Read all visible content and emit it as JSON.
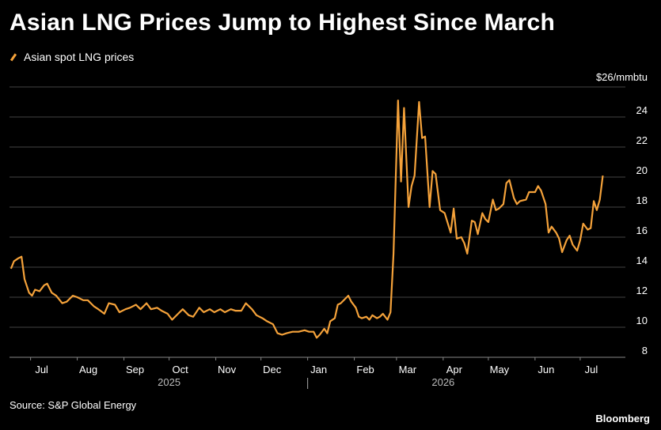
{
  "title": "Asian LNG Prices Jump to Highest Since March",
  "source": "Source: S&P Global Energy",
  "brand": "Bloomberg",
  "chart_data": {
    "type": "line",
    "title": "Asian LNG Prices Jump to Highest Since March",
    "unit_label": "$26/mmbtu",
    "ylim": [
      8,
      26
    ],
    "y_ticks": [
      8,
      10,
      12,
      14,
      16,
      18,
      20,
      22,
      24
    ],
    "y_tick_labels": [
      "8",
      "10",
      "12",
      "14",
      "16",
      "18",
      "20",
      "22",
      "24"
    ],
    "x_ticks": [
      "Jul",
      "Aug",
      "Sep",
      "Oct",
      "Nov",
      "Dec",
      "Jan",
      "Feb",
      "Mar",
      "Apr",
      "May",
      "Jun",
      "Jul"
    ],
    "x_tick_dates": [
      "2025-07-01",
      "2025-08-01",
      "2025-09-01",
      "2025-10-01",
      "2025-11-01",
      "2025-12-01",
      "2026-01-01",
      "2026-02-01",
      "2026-03-01",
      "2026-04-01",
      "2026-05-01",
      "2026-06-01",
      "2026-07-01"
    ],
    "year_labels": [
      {
        "year": "2025",
        "date": "2025-10-01"
      },
      {
        "year": "2026",
        "date": "2026-04-01"
      }
    ],
    "year_divider_date": "2026-01-01",
    "xlim": [
      "2025-06-17",
      "2026-07-31"
    ],
    "grid": true,
    "legend_position": "top-left",
    "series": [
      {
        "name": "Asian spot LNG prices",
        "color": "#f5a23a",
        "points": [
          [
            "2025-06-18",
            13.9
          ],
          [
            "2025-06-20",
            14.4
          ],
          [
            "2025-06-23",
            14.6
          ],
          [
            "2025-06-25",
            14.7
          ],
          [
            "2025-06-27",
            13.2
          ],
          [
            "2025-06-30",
            12.3
          ],
          [
            "2025-07-02",
            12.1
          ],
          [
            "2025-07-04",
            12.5
          ],
          [
            "2025-07-07",
            12.4
          ],
          [
            "2025-07-10",
            12.8
          ],
          [
            "2025-07-12",
            12.9
          ],
          [
            "2025-07-15",
            12.3
          ],
          [
            "2025-07-18",
            12.1
          ],
          [
            "2025-07-22",
            11.6
          ],
          [
            "2025-07-25",
            11.7
          ],
          [
            "2025-07-29",
            12.1
          ],
          [
            "2025-08-01",
            12.0
          ],
          [
            "2025-08-05",
            11.8
          ],
          [
            "2025-08-08",
            11.8
          ],
          [
            "2025-08-12",
            11.4
          ],
          [
            "2025-08-15",
            11.2
          ],
          [
            "2025-08-19",
            10.9
          ],
          [
            "2025-08-22",
            11.6
          ],
          [
            "2025-08-26",
            11.5
          ],
          [
            "2025-08-29",
            11.0
          ],
          [
            "2025-09-02",
            11.2
          ],
          [
            "2025-09-05",
            11.3
          ],
          [
            "2025-09-09",
            11.5
          ],
          [
            "2025-09-12",
            11.2
          ],
          [
            "2025-09-16",
            11.6
          ],
          [
            "2025-09-19",
            11.2
          ],
          [
            "2025-09-23",
            11.3
          ],
          [
            "2025-09-26",
            11.1
          ],
          [
            "2025-09-30",
            10.9
          ],
          [
            "2025-10-03",
            10.5
          ],
          [
            "2025-10-07",
            10.9
          ],
          [
            "2025-10-10",
            11.2
          ],
          [
            "2025-10-14",
            10.8
          ],
          [
            "2025-10-17",
            10.7
          ],
          [
            "2025-10-21",
            11.3
          ],
          [
            "2025-10-24",
            11.0
          ],
          [
            "2025-10-28",
            11.2
          ],
          [
            "2025-10-31",
            11.0
          ],
          [
            "2025-11-04",
            11.2
          ],
          [
            "2025-11-07",
            11.0
          ],
          [
            "2025-11-11",
            11.2
          ],
          [
            "2025-11-14",
            11.1
          ],
          [
            "2025-11-18",
            11.1
          ],
          [
            "2025-11-21",
            11.6
          ],
          [
            "2025-11-25",
            11.2
          ],
          [
            "2025-11-28",
            10.8
          ],
          [
            "2025-12-02",
            10.6
          ],
          [
            "2025-12-05",
            10.4
          ],
          [
            "2025-12-09",
            10.2
          ],
          [
            "2025-12-12",
            9.6
          ],
          [
            "2025-12-15",
            9.5
          ],
          [
            "2025-12-18",
            9.6
          ],
          [
            "2025-12-22",
            9.7
          ],
          [
            "2025-12-26",
            9.7
          ],
          [
            "2025-12-30",
            9.8
          ],
          [
            "2026-01-02",
            9.7
          ],
          [
            "2026-01-05",
            9.7
          ],
          [
            "2026-01-07",
            9.3
          ],
          [
            "2026-01-09",
            9.5
          ],
          [
            "2026-01-12",
            9.9
          ],
          [
            "2026-01-14",
            9.6
          ],
          [
            "2026-01-16",
            10.4
          ],
          [
            "2026-01-19",
            10.6
          ],
          [
            "2026-01-21",
            11.5
          ],
          [
            "2026-01-23",
            11.6
          ],
          [
            "2026-01-26",
            11.9
          ],
          [
            "2026-01-28",
            12.1
          ],
          [
            "2026-01-30",
            11.7
          ],
          [
            "2026-02-02",
            11.3
          ],
          [
            "2026-02-04",
            10.7
          ],
          [
            "2026-02-06",
            10.6
          ],
          [
            "2026-02-09",
            10.7
          ],
          [
            "2026-02-11",
            10.5
          ],
          [
            "2026-02-13",
            10.8
          ],
          [
            "2026-02-16",
            10.6
          ],
          [
            "2026-02-18",
            10.7
          ],
          [
            "2026-02-20",
            10.9
          ],
          [
            "2026-02-23",
            10.5
          ],
          [
            "2026-02-25",
            11.0
          ],
          [
            "2026-02-27",
            14.9
          ],
          [
            "2026-03-02",
            25.1
          ],
          [
            "2026-03-04",
            19.7
          ],
          [
            "2026-03-06",
            24.6
          ],
          [
            "2026-03-09",
            18.0
          ],
          [
            "2026-03-11",
            19.4
          ],
          [
            "2026-03-13",
            20.1
          ],
          [
            "2026-03-16",
            25.0
          ],
          [
            "2026-03-18",
            22.6
          ],
          [
            "2026-03-20",
            22.7
          ],
          [
            "2026-03-23",
            18.0
          ],
          [
            "2026-03-25",
            20.4
          ],
          [
            "2026-03-27",
            20.2
          ],
          [
            "2026-03-30",
            17.8
          ],
          [
            "2026-04-02",
            17.6
          ],
          [
            "2026-04-06",
            16.3
          ],
          [
            "2026-04-08",
            17.9
          ],
          [
            "2026-04-10",
            15.9
          ],
          [
            "2026-04-13",
            16.0
          ],
          [
            "2026-04-15",
            15.6
          ],
          [
            "2026-04-17",
            14.9
          ],
          [
            "2026-04-20",
            17.1
          ],
          [
            "2026-04-22",
            17.0
          ],
          [
            "2026-04-24",
            16.2
          ],
          [
            "2026-04-27",
            17.6
          ],
          [
            "2026-04-29",
            17.2
          ],
          [
            "2026-05-01",
            17.0
          ],
          [
            "2026-05-04",
            18.5
          ],
          [
            "2026-05-06",
            17.8
          ],
          [
            "2026-05-08",
            17.9
          ],
          [
            "2026-05-11",
            18.2
          ],
          [
            "2026-05-13",
            19.6
          ],
          [
            "2026-05-15",
            19.8
          ],
          [
            "2026-05-18",
            18.6
          ],
          [
            "2026-05-20",
            18.2
          ],
          [
            "2026-05-22",
            18.4
          ],
          [
            "2026-05-26",
            18.5
          ],
          [
            "2026-05-28",
            19.0
          ],
          [
            "2026-06-01",
            19.0
          ],
          [
            "2026-06-03",
            19.4
          ],
          [
            "2026-06-05",
            19.1
          ],
          [
            "2026-06-08",
            18.2
          ],
          [
            "2026-06-10",
            16.3
          ],
          [
            "2026-06-12",
            16.7
          ],
          [
            "2026-06-15",
            16.3
          ],
          [
            "2026-06-17",
            15.9
          ],
          [
            "2026-06-19",
            15.0
          ],
          [
            "2026-06-22",
            15.8
          ],
          [
            "2026-06-24",
            16.1
          ],
          [
            "2026-06-26",
            15.5
          ],
          [
            "2026-06-29",
            15.1
          ],
          [
            "2026-07-01",
            15.8
          ],
          [
            "2026-07-03",
            16.9
          ],
          [
            "2026-07-06",
            16.5
          ],
          [
            "2026-07-08",
            16.6
          ],
          [
            "2026-07-10",
            18.4
          ],
          [
            "2026-07-12",
            17.8
          ],
          [
            "2026-07-14",
            18.5
          ],
          [
            "2026-07-16",
            20.1
          ]
        ]
      }
    ]
  }
}
